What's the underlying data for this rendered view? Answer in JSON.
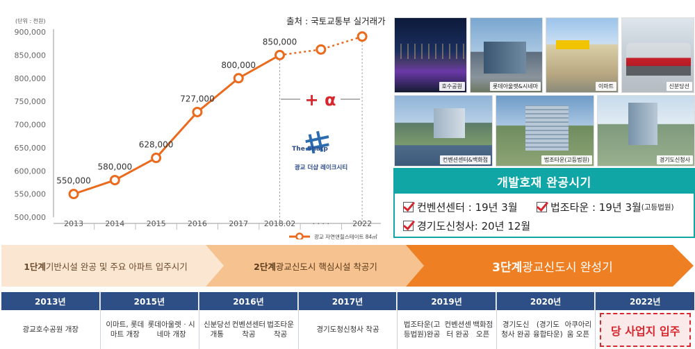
{
  "source": "출처 : 국토교통부 실거래가",
  "chart_data": {
    "type": "line",
    "unit_label": "(단위 : 천원)",
    "categories": [
      "2013",
      "2014",
      "2015",
      "2016",
      "2017",
      "2018.02",
      "· · · ·",
      "2022"
    ],
    "y_ticks": [
      "900,000",
      "850,000",
      "800,000",
      "750,000",
      "700,000",
      "650,000",
      "600,000",
      "550,000",
      "500,000"
    ],
    "ylim": [
      500000,
      900000
    ],
    "series": [
      {
        "name": "광교 자연앤힐스테이트 84㎡",
        "color": "#ea6a1e",
        "actual": [
          550000,
          580000,
          628000,
          727000,
          800000,
          850000
        ],
        "projected_x": [
          "2018.02",
          "· · · ·",
          "2022"
        ],
        "projected": [
          850000,
          862000,
          890000
        ]
      }
    ],
    "data_labels": [
      "550,000",
      "580,000",
      "628,000",
      "727,000",
      "800,000",
      "850,000"
    ],
    "annotation": "+ α",
    "logo_text": "The Sharp",
    "logo_caption": "광교 더샵 레이크시티"
  },
  "photos": [
    {
      "caption": "호수공원"
    },
    {
      "caption": "롯데아울렛&시네마"
    },
    {
      "caption": "이마트"
    },
    {
      "caption": "신분당선"
    },
    {
      "caption": "컨벤션센터&백화점"
    },
    {
      "caption": "법조타운(고등법원)"
    },
    {
      "caption": "경기도신청사"
    }
  ],
  "schedule": {
    "title": "개발호재 완공시기",
    "items": [
      {
        "label": "컨벤션센터 : 19년 3월",
        "note": ""
      },
      {
        "label": "법조타운 : 19년 3월",
        "note": "(고등법원)"
      },
      {
        "label": "경기도신청사: 20년 12월",
        "note": ""
      }
    ]
  },
  "phases": [
    {
      "step": "1단계",
      "text": " 기반시설 완공 및 주요 아파트 입주시기"
    },
    {
      "step": "2단계",
      "text": " 광교신도시 핵심시설 착공기"
    },
    {
      "step": "3단계",
      "text": " 광교신도시 완성기"
    }
  ],
  "timeline": [
    {
      "year": "2013년",
      "lines": [
        "광교호수공원 개장"
      ]
    },
    {
      "year": "2015년",
      "lines": [
        "이마트, 롯데마트 개장",
        "롯데아울렛 · 시네마 개장"
      ]
    },
    {
      "year": "2016년",
      "lines": [
        "신분당선 개통",
        "컨벤션센터 착공",
        "법조타운 착공"
      ]
    },
    {
      "year": "2017년",
      "lines": [
        "경기도청",
        "신청사 착공"
      ]
    },
    {
      "year": "2019년",
      "lines": [
        "법조타운(고등법원)완공",
        "컨벤션센터 완공",
        "백화점 오픈"
      ]
    },
    {
      "year": "2020년",
      "lines": [
        "경기도신청사 완공",
        "(경기도 융합타운)",
        "아쿠아리움 오픈"
      ]
    },
    {
      "year": "2022년",
      "lines": [
        "당 사업지 입주"
      ]
    }
  ],
  "colors": {
    "line": "#ea6a1e",
    "teal": "#10a6a6",
    "navy": "#2d4f86",
    "accent_red": "#d7262e"
  }
}
